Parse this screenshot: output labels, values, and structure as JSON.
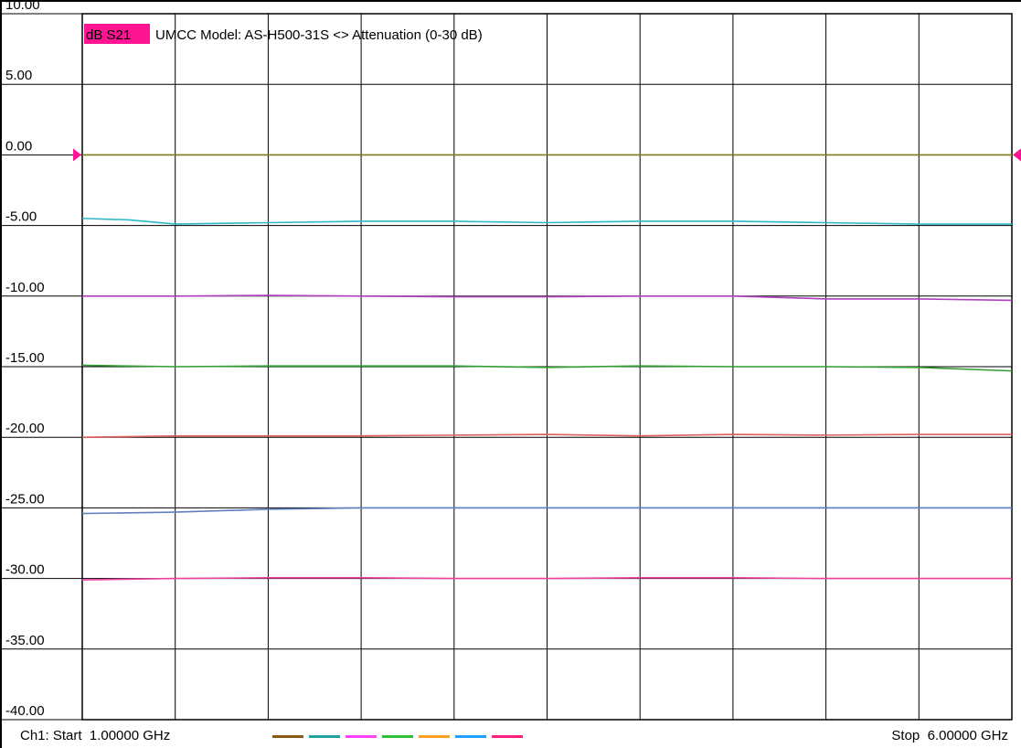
{
  "chart_data": {
    "type": "line",
    "title": {
      "badge": "dB S21",
      "text": "UMCC  Model: AS-H500-31S <> Attenuation (0-30 dB)"
    },
    "ylim": [
      -40,
      10
    ],
    "ytick_labels": [
      "10.00",
      "5.00",
      "0.00",
      "-5.00",
      "-10.00",
      "-15.00",
      "-20.00",
      "-25.00",
      "-30.00",
      "-35.00",
      "-40.00"
    ],
    "ytick_values": [
      10,
      5,
      0,
      -5,
      -10,
      -15,
      -20,
      -25,
      -30,
      -35,
      -40
    ],
    "xlim": [
      1.0,
      6.0
    ],
    "x_divisions": 10,
    "grid": true,
    "reference_level": 0.0,
    "series": [
      {
        "color": "#808020",
        "x": [
          1.0,
          6.0
        ],
        "y": [
          0.0,
          0.0
        ]
      },
      {
        "color": "#30b8c8",
        "x": [
          1.0,
          1.25,
          1.5,
          2.0,
          2.5,
          3.0,
          3.5,
          4.0,
          4.5,
          5.0,
          5.5,
          6.0
        ],
        "y": [
          -4.5,
          -4.6,
          -4.9,
          -4.8,
          -4.7,
          -4.7,
          -4.8,
          -4.7,
          -4.7,
          -4.8,
          -4.9,
          -4.9
        ]
      },
      {
        "color": "#b040c0",
        "x": [
          1.0,
          1.5,
          2.0,
          2.5,
          3.0,
          3.5,
          4.0,
          4.5,
          5.0,
          5.5,
          6.0
        ],
        "y": [
          -10.0,
          -10.0,
          -9.95,
          -10.0,
          -10.05,
          -10.05,
          -10.0,
          -10.0,
          -10.2,
          -10.2,
          -10.3
        ]
      },
      {
        "color": "#30a030",
        "x": [
          1.0,
          1.5,
          2.0,
          2.5,
          3.0,
          3.5,
          4.0,
          4.5,
          5.0,
          5.5,
          6.0
        ],
        "y": [
          -14.9,
          -15.0,
          -14.95,
          -14.95,
          -14.95,
          -15.05,
          -14.95,
          -15.0,
          -15.0,
          -15.05,
          -15.3
        ]
      },
      {
        "color": "#e06060",
        "x": [
          1.0,
          1.5,
          2.0,
          2.5,
          3.0,
          3.5,
          4.0,
          4.5,
          5.0,
          5.5,
          6.0
        ],
        "y": [
          -20.0,
          -19.9,
          -19.9,
          -19.9,
          -19.85,
          -19.8,
          -19.9,
          -19.8,
          -19.85,
          -19.8,
          -19.8
        ]
      },
      {
        "color": "#6080c0",
        "x": [
          1.0,
          1.5,
          2.0,
          2.5,
          3.0,
          3.5,
          4.0,
          4.5,
          5.0,
          5.5,
          6.0
        ],
        "y": [
          -25.4,
          -25.3,
          -25.1,
          -25.0,
          -25.0,
          -25.0,
          -25.0,
          -25.0,
          -25.0,
          -25.0,
          -25.0
        ]
      },
      {
        "color": "#f040a0",
        "x": [
          1.0,
          1.5,
          2.0,
          2.5,
          3.0,
          3.5,
          4.0,
          4.5,
          5.0,
          5.5,
          6.0
        ],
        "y": [
          -30.1,
          -30.0,
          -29.95,
          -29.95,
          -30.0,
          -30.0,
          -29.95,
          -29.95,
          -30.0,
          -30.0,
          -30.0
        ]
      }
    ],
    "footer": {
      "start_label": "Ch1: Start  1.00000 GHz",
      "stop_label": "Stop  6.00000 GHz",
      "trace_swatch_colors": [
        "#8b5a10",
        "#20a0a0",
        "#ff40ff",
        "#30c030",
        "#ffa020",
        "#20a0ff",
        "#ff2080"
      ]
    },
    "colors": {
      "grid": "#000000",
      "badge": "#ff1493",
      "reference_marker": "#ff1493",
      "background": "#ffffff"
    }
  }
}
